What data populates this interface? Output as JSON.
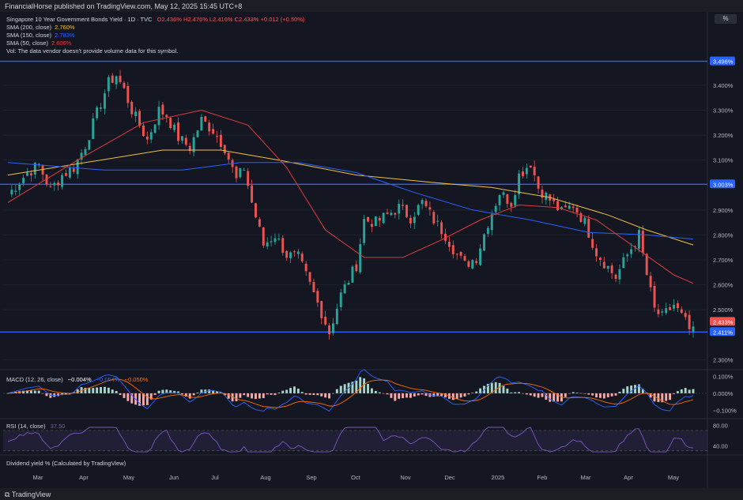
{
  "header": {
    "publisher": "FinancialHorse published on TradingView.com, May 12, 2025 15:45 UTC+8"
  },
  "toolbar": {
    "percent_button": "%"
  },
  "legend": {
    "symbol": "Singapore 10 Year Government Bonds Yield · 1D · TVC",
    "ohlc": "O2.436%  H2.476%  L2.416%  C2.433%  +0.012 (+0.50%)",
    "sma200_label": "SMA (200, close)",
    "sma200_value": "2.760%",
    "sma150_label": "SMA (150, close)",
    "sma150_value": "2.783%",
    "sma50_label": "SMA (50, close)",
    "sma50_value": "2.606%",
    "vol_note": "Vol: The data vendor doesn't provide volume data for this symbol.",
    "macd_label": "MACD (12, 26, close)",
    "macd_v1": "−0.004%",
    "macd_v2": "−0.054%",
    "macd_v3": "−0.050%",
    "rsi_label": "RSI (14, close)",
    "rsi_value": "37.50",
    "div_label": "Dividend yield % (Calculated by TradingView)"
  },
  "footer": {
    "brand": "TradingView"
  },
  "colors": {
    "up": "#26a69a",
    "down": "#ef5350",
    "sma200": "#f0c040",
    "sma150": "#2962ff",
    "sma50": "#e03b3b",
    "hline": "#2962ff",
    "rsi": "#7e57c2"
  },
  "chart_data": {
    "type": "candlestick",
    "x_ticks": [
      "Mar",
      "Apr",
      "May",
      "Jun",
      "Jul",
      "Aug",
      "Sep",
      "Oct",
      "Nov",
      "Dec",
      "2025",
      "Feb",
      "Mar",
      "Apr",
      "May"
    ],
    "y_ticks": [
      "3.400%",
      "3.300%",
      "3.200%",
      "3.100%",
      "2.900%",
      "2.800%",
      "2.700%",
      "2.600%",
      "2.500%",
      "2.300%"
    ],
    "ylim": [
      2.26,
      3.52
    ],
    "hlines": [
      {
        "value": 3.496,
        "label": "3.496%"
      },
      {
        "value": 3.003,
        "label": "3.003%"
      },
      {
        "value": 2.411,
        "label": "2.411%"
      }
    ],
    "last_price": {
      "value": 2.433,
      "label": "2.433%"
    },
    "trend": [
      [
        0,
        2.96
      ],
      [
        5,
        3.05
      ],
      [
        8,
        3.08
      ],
      [
        11,
        2.98
      ],
      [
        14,
        3.04
      ],
      [
        17,
        3.07
      ],
      [
        20,
        3.16
      ],
      [
        24,
        3.33
      ],
      [
        26,
        3.41
      ],
      [
        28,
        3.44
      ],
      [
        30,
        3.38
      ],
      [
        32,
        3.3
      ],
      [
        36,
        3.18
      ],
      [
        39,
        3.3
      ],
      [
        41,
        3.28
      ],
      [
        44,
        3.19
      ],
      [
        47,
        3.15
      ],
      [
        50,
        3.26
      ],
      [
        53,
        3.22
      ],
      [
        56,
        3.15
      ],
      [
        59,
        3.02
      ],
      [
        61,
        3.07
      ],
      [
        63,
        2.93
      ],
      [
        66,
        2.76
      ],
      [
        69,
        2.8
      ],
      [
        72,
        2.72
      ],
      [
        75,
        2.71
      ],
      [
        78,
        2.6
      ],
      [
        81,
        2.49
      ],
      [
        83,
        2.41
      ],
      [
        86,
        2.56
      ],
      [
        90,
        2.68
      ],
      [
        92,
        2.86
      ],
      [
        95,
        2.85
      ],
      [
        98,
        2.88
      ],
      [
        101,
        2.91
      ],
      [
        104,
        2.87
      ],
      [
        107,
        2.93
      ],
      [
        110,
        2.86
      ],
      [
        113,
        2.8
      ],
      [
        116,
        2.72
      ],
      [
        118,
        2.68
      ],
      [
        121,
        2.71
      ],
      [
        124,
        2.85
      ],
      [
        127,
        2.97
      ],
      [
        130,
        2.93
      ],
      [
        132,
        3.04
      ],
      [
        135,
        3.09
      ],
      [
        137,
        2.99
      ],
      [
        140,
        2.94
      ],
      [
        143,
        2.89
      ],
      [
        146,
        2.92
      ],
      [
        149,
        2.85
      ],
      [
        152,
        2.73
      ],
      [
        155,
        2.67
      ],
      [
        157,
        2.63
      ],
      [
        160,
        2.72
      ],
      [
        163,
        2.8
      ],
      [
        165,
        2.64
      ],
      [
        167,
        2.5
      ],
      [
        169,
        2.47
      ],
      [
        172,
        2.52
      ],
      [
        175,
        2.45
      ],
      [
        176,
        2.42
      ],
      [
        177,
        2.433
      ]
    ],
    "sma200": [
      [
        0,
        3.04
      ],
      [
        20,
        3.09
      ],
      [
        40,
        3.14
      ],
      [
        55,
        3.14
      ],
      [
        70,
        3.1
      ],
      [
        90,
        3.04
      ],
      [
        110,
        3.01
      ],
      [
        125,
        2.99
      ],
      [
        140,
        2.95
      ],
      [
        155,
        2.88
      ],
      [
        165,
        2.82
      ],
      [
        177,
        2.76
      ]
    ],
    "sma150": [
      [
        0,
        3.09
      ],
      [
        25,
        3.06
      ],
      [
        45,
        3.06
      ],
      [
        60,
        3.09
      ],
      [
        75,
        3.09
      ],
      [
        90,
        3.05
      ],
      [
        105,
        2.97
      ],
      [
        120,
        2.9
      ],
      [
        135,
        2.86
      ],
      [
        150,
        2.81
      ],
      [
        165,
        2.8
      ],
      [
        177,
        2.783
      ]
    ],
    "sma50": [
      [
        0,
        2.93
      ],
      [
        18,
        3.1
      ],
      [
        35,
        3.25
      ],
      [
        50,
        3.3
      ],
      [
        62,
        3.24
      ],
      [
        72,
        3.07
      ],
      [
        82,
        2.82
      ],
      [
        92,
        2.71
      ],
      [
        102,
        2.71
      ],
      [
        112,
        2.78
      ],
      [
        122,
        2.86
      ],
      [
        132,
        2.92
      ],
      [
        142,
        2.91
      ],
      [
        152,
        2.86
      ],
      [
        162,
        2.75
      ],
      [
        172,
        2.64
      ],
      [
        177,
        2.606
      ]
    ],
    "macd": {
      "ylim": [
        -0.14,
        0.13
      ],
      "y_ticks": [
        "0.100%",
        "0.000%",
        "−0.100%"
      ]
    },
    "rsi": {
      "ylim": [
        25,
        90
      ],
      "y_ticks": [
        "80.00",
        "40.00"
      ],
      "band": [
        30,
        70
      ]
    }
  }
}
